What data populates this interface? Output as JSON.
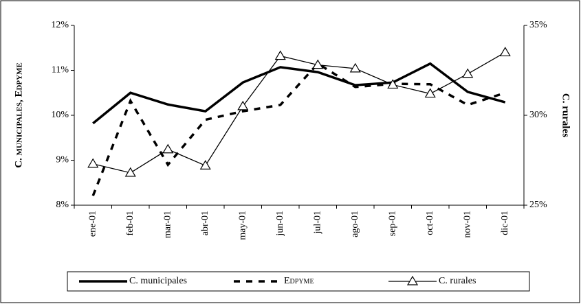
{
  "chart_data": {
    "type": "line",
    "y_label": "C. municipales, Edpyme",
    "y2_label": "C. rurales",
    "categories": [
      "ene-01",
      "feb-01",
      "mar-01",
      "abr-01",
      "may-01",
      "jun-01",
      "jul-01",
      "ago-01",
      "sep-01",
      "oct-01",
      "nov-01",
      "dic-01"
    ],
    "series": [
      {
        "name": "C. municipales",
        "color": "#000000",
        "style": "thick",
        "values": [
          9.82,
          10.5,
          10.24,
          10.09,
          10.73,
          11.07,
          10.96,
          10.67,
          10.73,
          11.15,
          10.52,
          10.29
        ]
      },
      {
        "name": "Edpyme",
        "color": "#000000",
        "style": "dashed",
        "values": [
          8.21,
          10.32,
          8.9,
          9.9,
          10.09,
          10.23,
          11.15,
          10.63,
          10.7,
          10.69,
          10.23,
          10.5
        ]
      },
      {
        "name": "C. rurales",
        "color": "#000000",
        "style": "triangle",
        "axis": "y2",
        "values": [
          27.3,
          26.8,
          28.1,
          27.2,
          30.5,
          33.3,
          32.8,
          32.6,
          31.7,
          31.2,
          32.3,
          33.5
        ]
      }
    ],
    "ylim": [
      8,
      12
    ],
    "yticks": [
      {
        "value": 8,
        "label": "8%"
      },
      {
        "value": 9,
        "label": "9%"
      },
      {
        "value": 10,
        "label": "10%"
      },
      {
        "value": 11,
        "label": "11%"
      },
      {
        "value": 12,
        "label": "12%"
      }
    ],
    "y2lim": [
      25,
      35
    ],
    "y2ticks": [
      {
        "value": 25,
        "label": "25%"
      },
      {
        "value": 30,
        "label": "30%"
      },
      {
        "value": 35,
        "label": "35%"
      }
    ]
  }
}
